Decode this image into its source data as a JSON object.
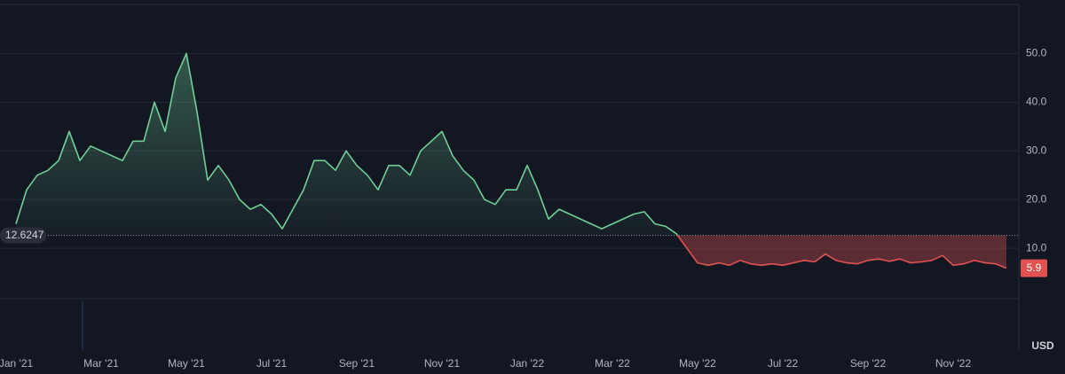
{
  "chart_data": {
    "type": "baseline-line",
    "categories": [
      "Jan '21",
      null,
      null,
      null,
      null,
      null,
      null,
      null,
      "Mar '21",
      null,
      null,
      null,
      null,
      null,
      null,
      null,
      "May '21",
      null,
      null,
      null,
      null,
      null,
      null,
      null,
      "Jul '21",
      null,
      null,
      null,
      null,
      null,
      null,
      null,
      "Sep '21",
      null,
      null,
      null,
      null,
      null,
      null,
      null,
      "Nov '21",
      null,
      null,
      null,
      null,
      null,
      null,
      null,
      "Jan '22",
      null,
      null,
      null,
      null,
      null,
      null,
      null,
      "Mar '22",
      null,
      null,
      null,
      null,
      null,
      null,
      null,
      "May '22",
      null,
      null,
      null,
      null,
      null,
      null,
      null,
      "Jul '22",
      null,
      null,
      null,
      null,
      null,
      null,
      null,
      "Sep '22",
      null,
      null,
      null,
      null,
      null,
      null,
      null,
      "Nov '22",
      null,
      null,
      null,
      null,
      null
    ],
    "values": [
      15,
      22,
      25,
      26,
      28,
      34,
      28,
      31,
      30,
      29,
      28,
      32,
      32,
      40,
      34,
      45,
      50,
      38,
      24,
      27,
      24,
      20,
      18,
      19,
      17,
      14,
      18,
      22,
      28,
      28,
      26,
      30,
      27,
      25,
      22,
      27,
      27,
      25,
      30,
      32,
      34,
      29,
      26,
      24,
      20,
      19,
      22,
      22,
      27,
      22,
      16,
      18,
      17,
      16,
      15,
      14,
      15,
      16,
      17,
      17.5,
      15,
      14.5,
      13,
      10,
      7,
      6.5,
      7,
      6.5,
      7.5,
      6.8,
      6.5,
      6.8,
      6.5,
      7,
      7.5,
      7.2,
      8.8,
      7.5,
      7,
      6.8,
      7.5,
      7.8,
      7.3,
      7.8,
      7,
      7.2,
      7.5,
      8.5,
      6.5,
      6.8,
      7.5,
      7,
      6.8,
      5.9
    ],
    "last_value_label": "5.9",
    "baseline": 12.6247,
    "color_above": "#6fcf97",
    "color_below": "#e05252",
    "ylim": [
      0,
      61
    ],
    "yticks": [
      {
        "value": 10,
        "label": "10.0"
      },
      {
        "value": 20,
        "label": "20.0"
      },
      {
        "value": 30,
        "label": "30.0"
      },
      {
        "value": 40,
        "label": "40.0"
      },
      {
        "value": 50,
        "label": "50.0"
      }
    ],
    "currency": "USD",
    "grid": true
  }
}
